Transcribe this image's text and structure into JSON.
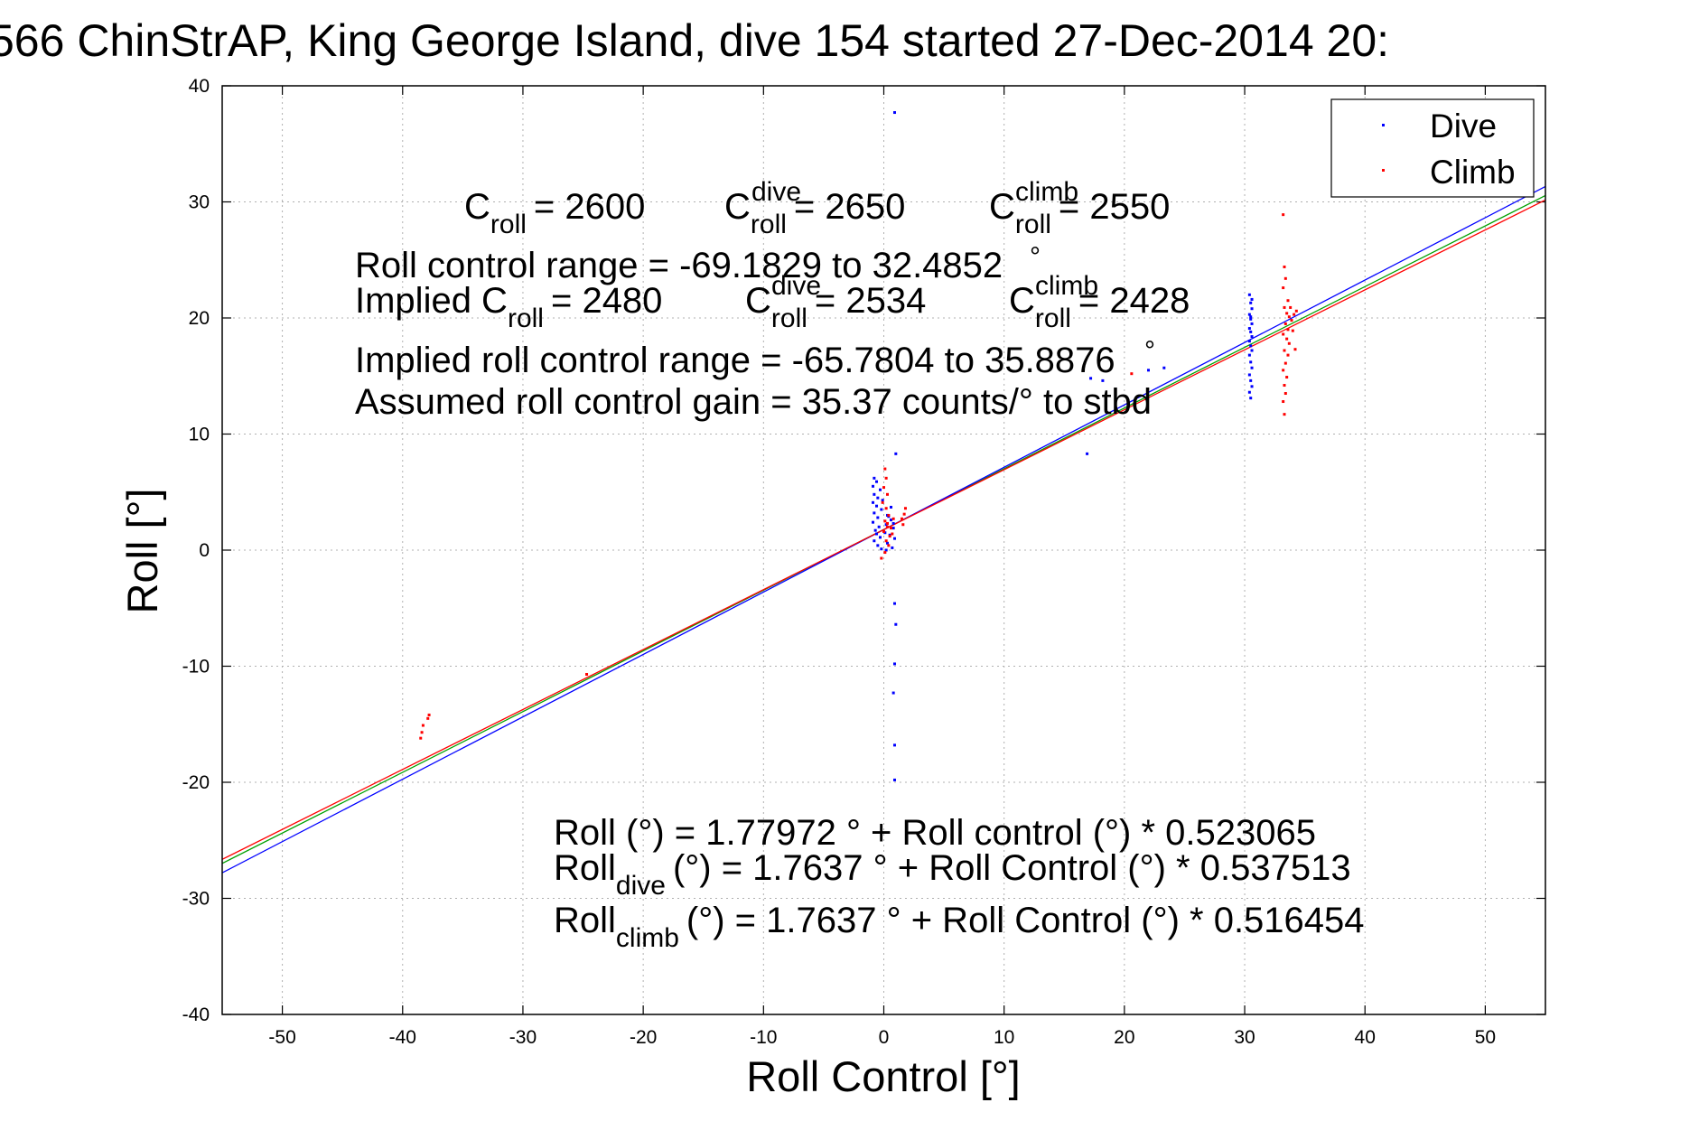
{
  "chart_data": {
    "type": "scatter",
    "title": "566 ChinStrAP, King George Island, dive 154 started 27-Dec-2014 20:",
    "xlabel": "Roll Control [°]",
    "ylabel": "Roll [°]",
    "xlim": [
      -55,
      55
    ],
    "ylim": [
      -40,
      40
    ],
    "xticks": [
      -50,
      -40,
      -30,
      -20,
      -10,
      0,
      10,
      20,
      30,
      40,
      50
    ],
    "yticks": [
      -40,
      -30,
      -20,
      -10,
      0,
      10,
      20,
      30,
      40
    ],
    "grid": true,
    "legend_position": "top-right",
    "colors": {
      "dive": "#0000ff",
      "climb": "#ff0000",
      "fit_all": "#00a000",
      "fit_dive": "#0000ff",
      "fit_climb": "#ff0000"
    },
    "series": [
      {
        "name": "Dive",
        "marker": "point",
        "points": [
          [
            0.9,
            37.7
          ],
          [
            1.0,
            8.3
          ],
          [
            -0.8,
            6.2
          ],
          [
            -0.6,
            5.9
          ],
          [
            -0.9,
            5.5
          ],
          [
            -0.3,
            5.2
          ],
          [
            -0.8,
            4.8
          ],
          [
            -0.5,
            4.5
          ],
          [
            -0.9,
            4.1
          ],
          [
            -0.6,
            3.8
          ],
          [
            -0.2,
            3.5
          ],
          [
            -0.8,
            3.2
          ],
          [
            0.3,
            3.0
          ],
          [
            -0.5,
            2.8
          ],
          [
            0.6,
            2.6
          ],
          [
            -0.9,
            2.4
          ],
          [
            0.2,
            2.2
          ],
          [
            -0.4,
            2.0
          ],
          [
            0.8,
            1.9
          ],
          [
            -0.7,
            1.7
          ],
          [
            0.1,
            1.5
          ],
          [
            0.5,
            1.3
          ],
          [
            -0.3,
            1.1
          ],
          [
            0.9,
            1.0
          ],
          [
            -0.8,
            0.8
          ],
          [
            0.3,
            0.6
          ],
          [
            -0.5,
            0.4
          ],
          [
            0.7,
            0.2
          ],
          [
            -0.2,
            0.1
          ],
          [
            0.4,
            2.9
          ],
          [
            0.6,
            3.7
          ],
          [
            -0.1,
            4.3
          ],
          [
            0.2,
            0.0
          ],
          [
            -0.6,
            1.4
          ],
          [
            0.8,
            2.3
          ],
          [
            0.9,
            -4.6
          ],
          [
            1.0,
            -6.4
          ],
          [
            0.9,
            -9.8
          ],
          [
            0.8,
            -12.3
          ],
          [
            0.9,
            -16.8
          ],
          [
            0.9,
            -19.8
          ],
          [
            16.9,
            8.3
          ],
          [
            17.2,
            14.8
          ],
          [
            18.2,
            14.6
          ],
          [
            22.0,
            15.5
          ],
          [
            23.3,
            15.7
          ],
          [
            30.4,
            22.0
          ],
          [
            30.5,
            21.3
          ],
          [
            30.6,
            20.8
          ],
          [
            30.4,
            20.3
          ],
          [
            30.5,
            19.9
          ],
          [
            30.6,
            19.5
          ],
          [
            30.4,
            19.1
          ],
          [
            30.5,
            18.8
          ],
          [
            30.6,
            18.4
          ],
          [
            30.4,
            18.0
          ],
          [
            30.5,
            17.6
          ],
          [
            30.6,
            17.2
          ],
          [
            30.4,
            16.8
          ],
          [
            30.5,
            16.2
          ],
          [
            30.6,
            15.7
          ],
          [
            30.4,
            15.1
          ],
          [
            30.5,
            14.6
          ],
          [
            30.6,
            14.1
          ],
          [
            30.4,
            13.6
          ],
          [
            30.5,
            13.1
          ],
          [
            30.6,
            21.6
          ],
          [
            30.5,
            20.1
          ]
        ]
      },
      {
        "name": "Climb",
        "marker": "point",
        "points": [
          [
            -37.8,
            -14.2
          ],
          [
            -37.9,
            -14.5
          ],
          [
            -38.3,
            -15.1
          ],
          [
            -38.4,
            -15.7
          ],
          [
            -38.5,
            -16.2
          ],
          [
            -24.7,
            -10.7
          ],
          [
            0.1,
            7.0
          ],
          [
            0.2,
            6.2
          ],
          [
            0.0,
            5.4
          ],
          [
            0.3,
            4.8
          ],
          [
            -0.1,
            4.1
          ],
          [
            0.2,
            3.6
          ],
          [
            0.4,
            3.0
          ],
          [
            0.1,
            2.5
          ],
          [
            0.3,
            2.0
          ],
          [
            0.0,
            1.6
          ],
          [
            0.5,
            1.2
          ],
          [
            0.2,
            0.8
          ],
          [
            0.4,
            0.4
          ],
          [
            0.1,
            -0.2
          ],
          [
            -0.2,
            -0.7
          ],
          [
            0.6,
            1.9
          ],
          [
            0.8,
            2.7
          ],
          [
            0.3,
            2.3
          ],
          [
            0.7,
            1.4
          ],
          [
            1.6,
            2.2
          ],
          [
            1.7,
            3.1
          ],
          [
            1.8,
            3.6
          ],
          [
            1.5,
            2.7
          ],
          [
            20.6,
            15.2
          ],
          [
            33.2,
            28.9
          ],
          [
            33.3,
            24.4
          ],
          [
            33.4,
            23.4
          ],
          [
            33.2,
            22.6
          ],
          [
            33.6,
            21.5
          ],
          [
            33.3,
            20.9
          ],
          [
            33.5,
            20.4
          ],
          [
            33.7,
            20.1
          ],
          [
            33.9,
            19.8
          ],
          [
            34.1,
            20.3
          ],
          [
            34.3,
            20.6
          ],
          [
            33.4,
            19.5
          ],
          [
            33.6,
            19.0
          ],
          [
            33.2,
            18.6
          ],
          [
            33.5,
            18.2
          ],
          [
            33.7,
            17.8
          ],
          [
            33.3,
            17.2
          ],
          [
            33.6,
            16.8
          ],
          [
            33.4,
            16.1
          ],
          [
            33.2,
            15.5
          ],
          [
            33.5,
            14.9
          ],
          [
            33.3,
            14.2
          ],
          [
            33.4,
            13.5
          ],
          [
            33.2,
            12.8
          ],
          [
            33.3,
            11.7
          ],
          [
            34.2,
            17.3
          ],
          [
            34.0,
            18.9
          ],
          [
            33.8,
            20.9
          ]
        ]
      }
    ],
    "fits": [
      {
        "name": "all",
        "intercept": 1.77972,
        "slope": 0.523065
      },
      {
        "name": "dive",
        "intercept": 1.7637,
        "slope": 0.537513
      },
      {
        "name": "climb",
        "intercept": 1.7637,
        "slope": 0.516454
      }
    ]
  },
  "legend": {
    "dive": "Dive",
    "climb": "Climb"
  },
  "annotations": {
    "c_label": "C",
    "roll_sub": "roll",
    "dive_sup": "dive",
    "climb_sup": "climb",
    "c_roll_val": "= 2600",
    "c_dive_val": "= 2650",
    "c_climb_val": "= 2550",
    "range_line": "Roll control range = -69.1829 to 32.4852",
    "degree_mark": "°",
    "implied_label": "Implied C",
    "implied_roll_val": "= 2480",
    "implied_dive_val": "= 2534",
    "implied_climb_val": "= 2428",
    "implied_range_line": "Implied roll control range = -65.7804 to 35.8876",
    "gain_line": "Assumed roll control gain = 35.37 counts/° to stbd",
    "fit_all_line": "Roll (°) = 1.77972 ° + Roll control (°) * 0.523065",
    "fit_dive_pre": "Roll",
    "fit_dive_sub": "dive",
    "fit_dive_post": "(°) = 1.7637 ° + Roll Control (°) * 0.537513",
    "fit_climb_pre": "Roll",
    "fit_climb_sub": "climb",
    "fit_climb_post": "(°) = 1.7637 ° + Roll Control (°) * 0.516454"
  }
}
